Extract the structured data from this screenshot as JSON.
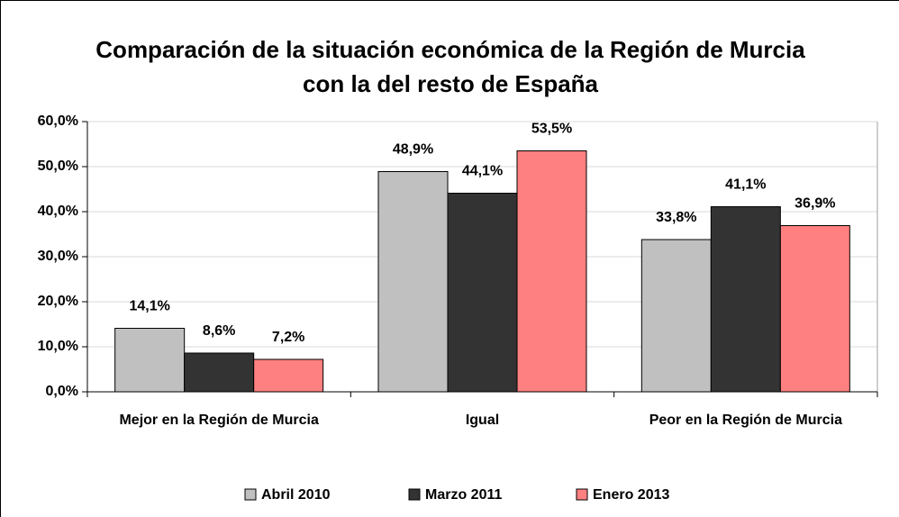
{
  "chart_data": {
    "type": "bar",
    "title": "Comparación de la situación económica de la Región de Murcia con la del resto de España",
    "categories": [
      "Mejor en la Región de Murcia",
      "Igual",
      "Peor en la Región de Murcia"
    ],
    "series": [
      {
        "name": "Abril 2010",
        "color": "#c0c0c0",
        "values": [
          14.1,
          48.9,
          33.8
        ],
        "value_labels": [
          "14,1%",
          "48,9%",
          "33,8%"
        ]
      },
      {
        "name": "Marzo 2011",
        "color": "#333333",
        "values": [
          8.6,
          44.1,
          41.1
        ],
        "value_labels": [
          "8,6%",
          "44,1%",
          "41,1%"
        ]
      },
      {
        "name": "Enero 2013",
        "color": "#ff8080",
        "values": [
          7.2,
          53.5,
          36.9
        ],
        "value_labels": [
          "7,2%",
          "53,5%",
          "36,9%"
        ]
      }
    ],
    "ylim": [
      0,
      60
    ],
    "yticks": [
      {
        "value": 0,
        "label": "0,0%"
      },
      {
        "value": 10,
        "label": "10,0%"
      },
      {
        "value": 20,
        "label": "20,0%"
      },
      {
        "value": 30,
        "label": "30,0%"
      },
      {
        "value": 40,
        "label": "40,0%"
      },
      {
        "value": 50,
        "label": "50,0%"
      },
      {
        "value": 60,
        "label": "60,0%"
      }
    ],
    "grid": true,
    "legend": "bottom"
  }
}
